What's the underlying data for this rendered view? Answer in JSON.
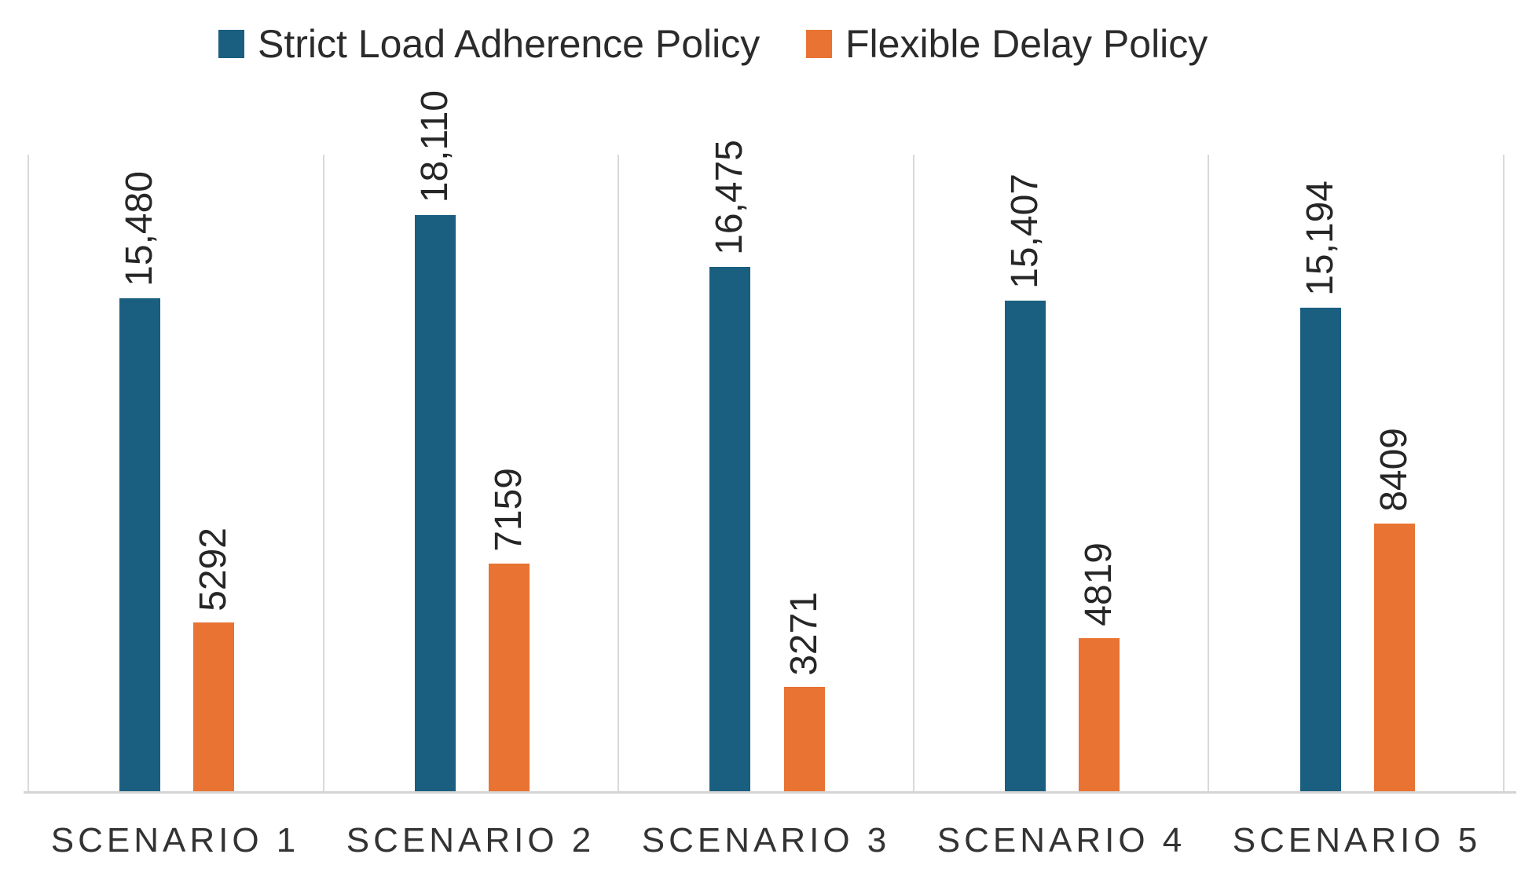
{
  "chart_data": {
    "type": "bar",
    "title": "",
    "xlabel": "",
    "ylabel": "",
    "categories": [
      "SCENARIO 1",
      "SCENARIO 2",
      "SCENARIO 3",
      "SCENARIO 4",
      "SCENARIO 5"
    ],
    "series": [
      {
        "name": "Strict Load Adherence Policy",
        "color": "#1A5F80",
        "values": [
          15480,
          18110,
          16475,
          15407,
          15194
        ],
        "labels": [
          "15,480",
          "18,110",
          "16,475",
          "15,407",
          "15,194"
        ]
      },
      {
        "name": "Flexible Delay Policy",
        "color": "#E87332",
        "values": [
          5292,
          7159,
          3271,
          4819,
          8409
        ],
        "labels": [
          "5292",
          "7159",
          "3271",
          "4819",
          "8409"
        ]
      }
    ],
    "ylim": [
      0,
      20000
    ],
    "y_axis_visible": false,
    "grid": "vertical separator lines between categories, no horizontal gridlines",
    "legend_position": "top",
    "data_label_rotation": "vertical"
  },
  "colors": {
    "series_strict": "#1A5F80",
    "series_flexible": "#E87332",
    "gridline": "#D9D9D9",
    "axis_line": "#D5D3D3",
    "data_label": "#262626",
    "category_label": "#333333",
    "background": "#FFFFFF"
  }
}
